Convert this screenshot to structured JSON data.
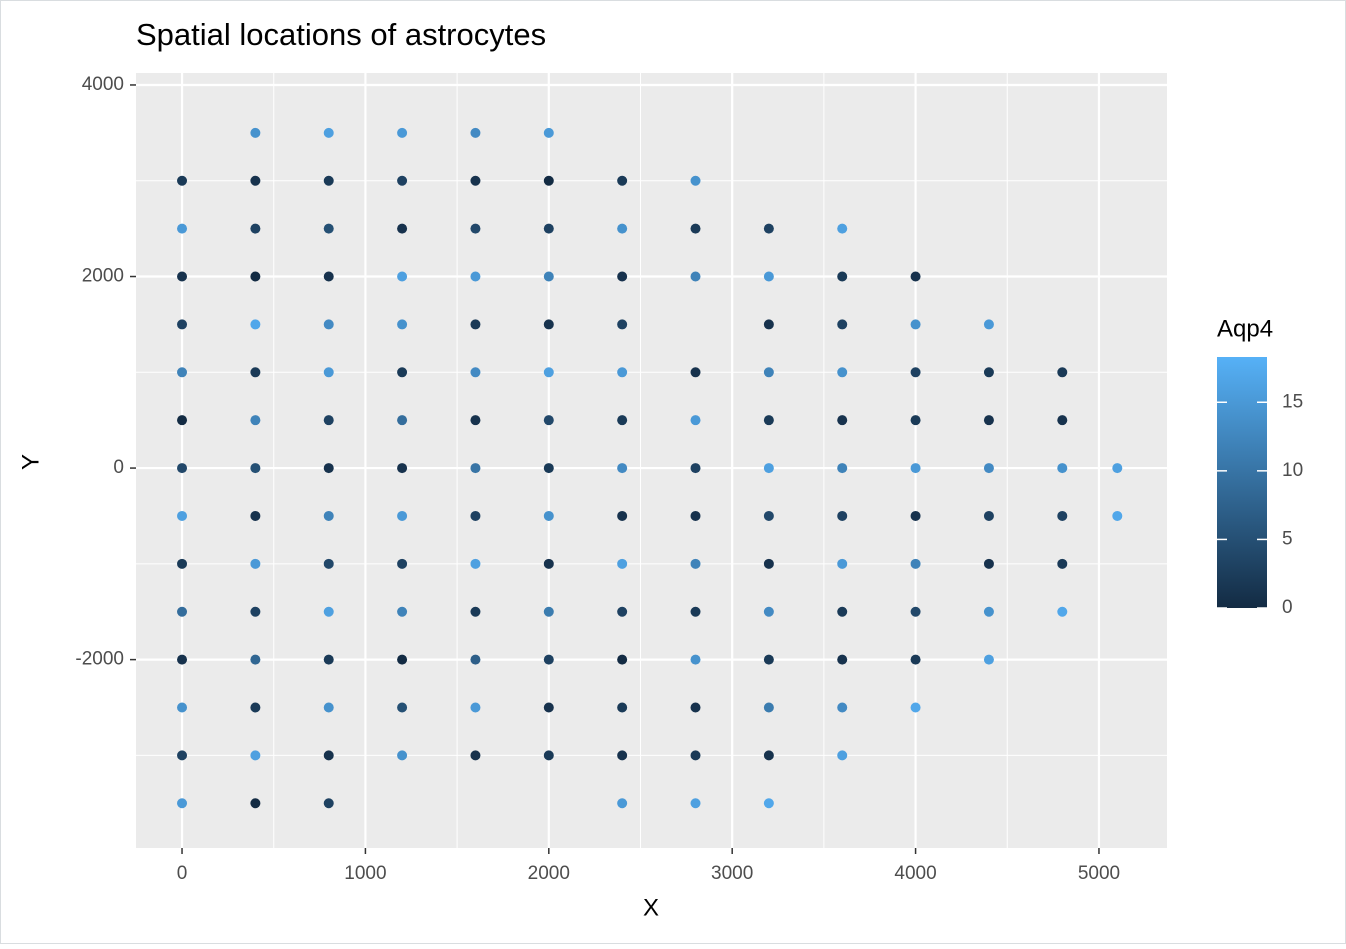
{
  "chart_data": {
    "type": "scatter",
    "title": "Spatial locations of astrocytes",
    "x_label": "X",
    "y_label": "Y",
    "xlim": [
      -251,
      5371
    ],
    "ylim": [
      -3967,
      4125
    ],
    "xticks": [
      0,
      1000,
      2000,
      3000,
      4000,
      5000
    ],
    "yticks": [
      -2000,
      0,
      2000,
      4000
    ],
    "xminor": [
      500,
      1500,
      2500,
      3500,
      4500
    ],
    "yminor": [
      -3000,
      -1000,
      1000,
      3000
    ],
    "grid": true,
    "colorbar": {
      "title": "Aqp4",
      "low": "#132B43",
      "high": "#56B1F7",
      "lim": [
        0,
        18.3
      ],
      "ticks": [
        0,
        5,
        10,
        15
      ]
    },
    "x": [
      0,
      0,
      0,
      0,
      0,
      0,
      0,
      0,
      0,
      0,
      0,
      0,
      0,
      0,
      400,
      400,
      400,
      400,
      400,
      400,
      400,
      400,
      400,
      400,
      400,
      400,
      400,
      400,
      400,
      800,
      800,
      800,
      800,
      800,
      800,
      800,
      800,
      800,
      800,
      800,
      800,
      800,
      800,
      800,
      1200,
      1200,
      1200,
      1200,
      1200,
      1200,
      1200,
      1200,
      1200,
      1200,
      1200,
      1200,
      1200,
      1200,
      1600,
      1600,
      1600,
      1600,
      1600,
      1600,
      1600,
      1600,
      1600,
      1600,
      1600,
      1600,
      1600,
      1600,
      2000,
      2000,
      2000,
      2000,
      2000,
      2000,
      2000,
      2000,
      2000,
      2000,
      2000,
      2000,
      2000,
      2000,
      2400,
      2400,
      2400,
      2400,
      2400,
      2400,
      2400,
      2400,
      2400,
      2400,
      2400,
      2400,
      2400,
      2400,
      2800,
      2800,
      2800,
      2800,
      2800,
      2800,
      2800,
      2800,
      2800,
      2800,
      2800,
      2800,
      2800,
      3200,
      3200,
      3200,
      3200,
      3200,
      3200,
      3200,
      3200,
      3200,
      3200,
      3200,
      3200,
      3200,
      3600,
      3600,
      3600,
      3600,
      3600,
      3600,
      3600,
      3600,
      3600,
      3600,
      3600,
      3600,
      4000,
      4000,
      4000,
      4000,
      4000,
      4000,
      4000,
      4000,
      4000,
      4000,
      4400,
      4400,
      4400,
      4400,
      4400,
      4400,
      4400,
      4400,
      4800,
      4800,
      4800,
      4800,
      4800,
      4800,
      5100,
      5100
    ],
    "y": [
      3000,
      2500,
      2000,
      1500,
      1000,
      500,
      0,
      -500,
      -1000,
      -1500,
      -2000,
      -2500,
      -3000,
      -3500,
      3500,
      3000,
      2500,
      2000,
      1500,
      1000,
      500,
      0,
      -500,
      -1000,
      -1500,
      -2000,
      -2500,
      -3000,
      -3500,
      3500,
      3000,
      2500,
      2000,
      1500,
      1000,
      500,
      0,
      -500,
      -1000,
      -1500,
      -2000,
      -2500,
      -3000,
      -3500,
      3500,
      3000,
      2500,
      2000,
      1500,
      1000,
      500,
      0,
      -500,
      -1000,
      -1500,
      -2000,
      -2500,
      -3000,
      3500,
      3000,
      2500,
      2000,
      1500,
      1000,
      500,
      0,
      -500,
      -1000,
      -1500,
      -2000,
      -2500,
      -3000,
      3500,
      3000,
      2500,
      2000,
      1500,
      1000,
      500,
      0,
      -500,
      -1000,
      -1500,
      -2000,
      -2500,
      -3000,
      3000,
      2500,
      2000,
      1500,
      1000,
      500,
      0,
      -500,
      -1000,
      -1500,
      -2000,
      -2500,
      -3000,
      -3500,
      3000,
      2500,
      2000,
      1000,
      500,
      0,
      -500,
      -1000,
      -1500,
      -2000,
      -2500,
      -3000,
      -3500,
      2500,
      2000,
      1500,
      1000,
      500,
      0,
      -500,
      -1000,
      -1500,
      -2000,
      -2500,
      -3000,
      -3500,
      2500,
      2000,
      1500,
      1000,
      500,
      0,
      -500,
      -1000,
      -1500,
      -2000,
      -2500,
      -3000,
      2000,
      1500,
      1000,
      500,
      0,
      -500,
      -1000,
      -1500,
      -2000,
      -2500,
      1500,
      1000,
      500,
      0,
      -500,
      -1000,
      -1500,
      -2000,
      1000,
      500,
      0,
      -500,
      -1000,
      -1500,
      0,
      -500
    ],
    "values": [
      2,
      15,
      1,
      3,
      12,
      0,
      4,
      16,
      2,
      9,
      1,
      14,
      3,
      15,
      14,
      1,
      3,
      0,
      17,
      2,
      12,
      5,
      1,
      15,
      3,
      8,
      2,
      16,
      0,
      16,
      2,
      5,
      1,
      13,
      15,
      3,
      1,
      12,
      4,
      16,
      2,
      14,
      1,
      3,
      15,
      3,
      1,
      16,
      14,
      2,
      9,
      1,
      15,
      3,
      12,
      0,
      5,
      14,
      13,
      1,
      4,
      15,
      2,
      13,
      1,
      10,
      3,
      16,
      2,
      7,
      15,
      1,
      15,
      0,
      3,
      12,
      1,
      16,
      4,
      2,
      14,
      1,
      11,
      3,
      1,
      2,
      2,
      14,
      1,
      3,
      15,
      2,
      13,
      1,
      16,
      3,
      0,
      2,
      1,
      15,
      14,
      2,
      12,
      1,
      15,
      3,
      1,
      12,
      2,
      14,
      1,
      2,
      16,
      3,
      15,
      1,
      12,
      2,
      16,
      4,
      1,
      13,
      2,
      11,
      1,
      17,
      16,
      2,
      3,
      14,
      1,
      12,
      3,
      15,
      2,
      1,
      13,
      16,
      1,
      14,
      3,
      2,
      15,
      1,
      12,
      4,
      2,
      17,
      15,
      2,
      1,
      13,
      3,
      1,
      14,
      16,
      2,
      1,
      14,
      3,
      2,
      17,
      16,
      17
    ]
  }
}
